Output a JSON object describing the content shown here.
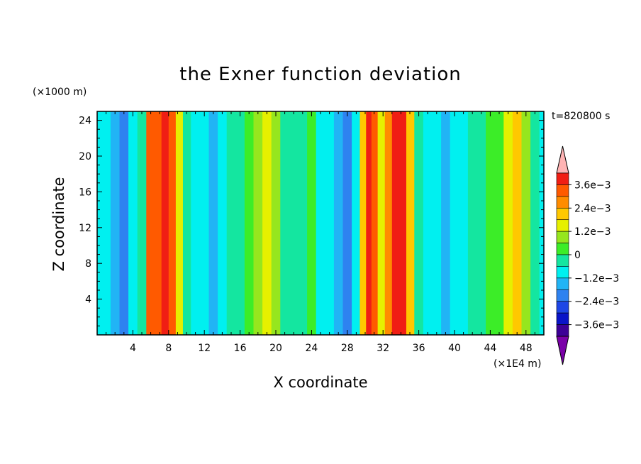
{
  "chart_data": {
    "type": "heatmap",
    "title": "the Exner function deviation",
    "xlabel": "X coordinate",
    "ylabel": "Z coordinate",
    "x_unit": "(×1E4 m)",
    "y_unit": "(×1000 m)",
    "time_label": "t=820800 s",
    "x_ticks": [
      "4",
      "8",
      "12",
      "16",
      "20",
      "24",
      "28",
      "32",
      "36",
      "40",
      "44",
      "48"
    ],
    "y_ticks": [
      "4",
      "8",
      "12",
      "16",
      "20",
      "24"
    ],
    "xlim": [
      0,
      50
    ],
    "ylim": [
      0,
      25
    ],
    "colorbar": {
      "labels": [
        "3.6e−3",
        "2.4e−3",
        "1.2e−3",
        "0",
        "−1.2e−3",
        "−2.4e−3",
        "−3.6e−3"
      ],
      "levels": [
        -0.0042,
        -0.0036,
        -0.003,
        -0.0024,
        -0.0018,
        -0.0012,
        -0.0006,
        0,
        0.0006,
        0.0012,
        0.0018,
        0.0024,
        0.003,
        0.0036,
        0.0042
      ],
      "colors": [
        "#7a00a8",
        "#3c0096",
        "#0a14c8",
        "#1e46e6",
        "#2e82f0",
        "#21b4f5",
        "#00f0f0",
        "#14e6a0",
        "#3ced28",
        "#96e61e",
        "#e6f000",
        "#ffc800",
        "#ff8c00",
        "#ff5a00",
        "#f01e14",
        "#ffb4b4"
      ]
    },
    "columns": [
      {
        "x": 0.0,
        "v": -0.001
      },
      {
        "x": 1.0,
        "v": -0.0012
      },
      {
        "x": 2.0,
        "v": -0.0016
      },
      {
        "x": 3.0,
        "v": -0.002
      },
      {
        "x": 4.0,
        "v": -0.0012
      },
      {
        "x": 5.0,
        "v": -0.0004
      },
      {
        "x": 6.0,
        "v": 0.003
      },
      {
        "x": 6.8,
        "v": 0.0034
      },
      {
        "x": 7.6,
        "v": 0.0036
      },
      {
        "x": 8.4,
        "v": 0.0032
      },
      {
        "x": 9.2,
        "v": 0.0012
      },
      {
        "x": 10.0,
        "v": -0.0004
      },
      {
        "x": 11.0,
        "v": -0.001
      },
      {
        "x": 12.0,
        "v": -0.0012
      },
      {
        "x": 13.0,
        "v": -0.0015
      },
      {
        "x": 14.0,
        "v": -0.0009
      },
      {
        "x": 15.0,
        "v": -0.0006
      },
      {
        "x": 16.0,
        "v": -0.0003
      },
      {
        "x": 17.0,
        "v": 0.0001
      },
      {
        "x": 18.0,
        "v": 0.0008
      },
      {
        "x": 19.0,
        "v": 0.0016
      },
      {
        "x": 20.0,
        "v": 0.0006
      },
      {
        "x": 21.0,
        "v": -0.0002
      },
      {
        "x": 22.0,
        "v": -0.0006
      },
      {
        "x": 23.0,
        "v": -0.0004
      },
      {
        "x": 24.0,
        "v": 0.0002
      },
      {
        "x": 25.0,
        "v": -0.0008
      },
      {
        "x": 26.0,
        "v": -0.0012
      },
      {
        "x": 27.0,
        "v": -0.0016
      },
      {
        "x": 28.0,
        "v": -0.0022
      },
      {
        "x": 29.0,
        "v": -0.0008
      },
      {
        "x": 29.8,
        "v": 0.0018
      },
      {
        "x": 30.4,
        "v": 0.0038
      },
      {
        "x": 31.0,
        "v": 0.0034
      },
      {
        "x": 31.8,
        "v": 0.0014
      },
      {
        "x": 32.6,
        "v": 0.0026
      },
      {
        "x": 33.4,
        "v": 0.004
      },
      {
        "x": 34.2,
        "v": 0.0038
      },
      {
        "x": 35.0,
        "v": 0.0018
      },
      {
        "x": 36.0,
        "v": -0.0002
      },
      {
        "x": 37.0,
        "v": -0.0008
      },
      {
        "x": 38.0,
        "v": -0.0012
      },
      {
        "x": 39.0,
        "v": -0.0016
      },
      {
        "x": 40.0,
        "v": -0.0008
      },
      {
        "x": 41.0,
        "v": -0.0012
      },
      {
        "x": 42.0,
        "v": -0.0006
      },
      {
        "x": 43.0,
        "v": -0.0004
      },
      {
        "x": 44.0,
        "v": 0.0
      },
      {
        "x": 45.0,
        "v": 0.0004
      },
      {
        "x": 46.0,
        "v": 0.0012
      },
      {
        "x": 47.0,
        "v": 0.002
      },
      {
        "x": 48.0,
        "v": 0.0006
      },
      {
        "x": 49.0,
        "v": -0.0004
      },
      {
        "x": 50.0,
        "v": -0.0008
      }
    ]
  }
}
